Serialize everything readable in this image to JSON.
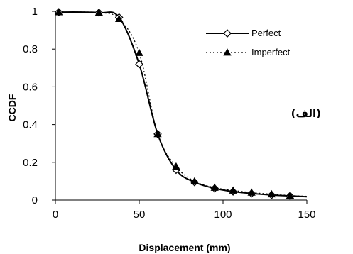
{
  "chart_data": {
    "type": "line",
    "xlabel": "Displacement (mm)",
    "ylabel": "CCDF",
    "xlim": [
      0,
      150
    ],
    "ylim": [
      0,
      1
    ],
    "xticks": [
      "0",
      "50",
      "100",
      "150"
    ],
    "yticks": [
      "0",
      "0.2",
      "0.4",
      "0.6",
      "0.8",
      "1"
    ],
    "legend_position": "top-right",
    "side_label": "(الف)",
    "series": [
      {
        "name": "Perfect",
        "style": "solid",
        "marker": "open-diamond",
        "color": "#000000",
        "x": [
          2,
          26,
          38,
          50,
          61,
          72,
          83,
          95,
          106,
          117,
          129,
          140
        ],
        "y": [
          0.996,
          0.993,
          0.968,
          0.72,
          0.35,
          0.16,
          0.095,
          0.062,
          0.045,
          0.035,
          0.027,
          0.022
        ]
      },
      {
        "name": "Imperfect",
        "style": "dotted",
        "marker": "filled-triangle",
        "color": "#000000",
        "x": [
          2,
          26,
          38,
          50,
          61,
          72,
          83,
          95,
          106,
          117,
          129,
          140
        ],
        "y": [
          0.996,
          0.993,
          0.96,
          0.78,
          0.35,
          0.178,
          0.1,
          0.066,
          0.051,
          0.04,
          0.031,
          0.024
        ]
      }
    ]
  }
}
